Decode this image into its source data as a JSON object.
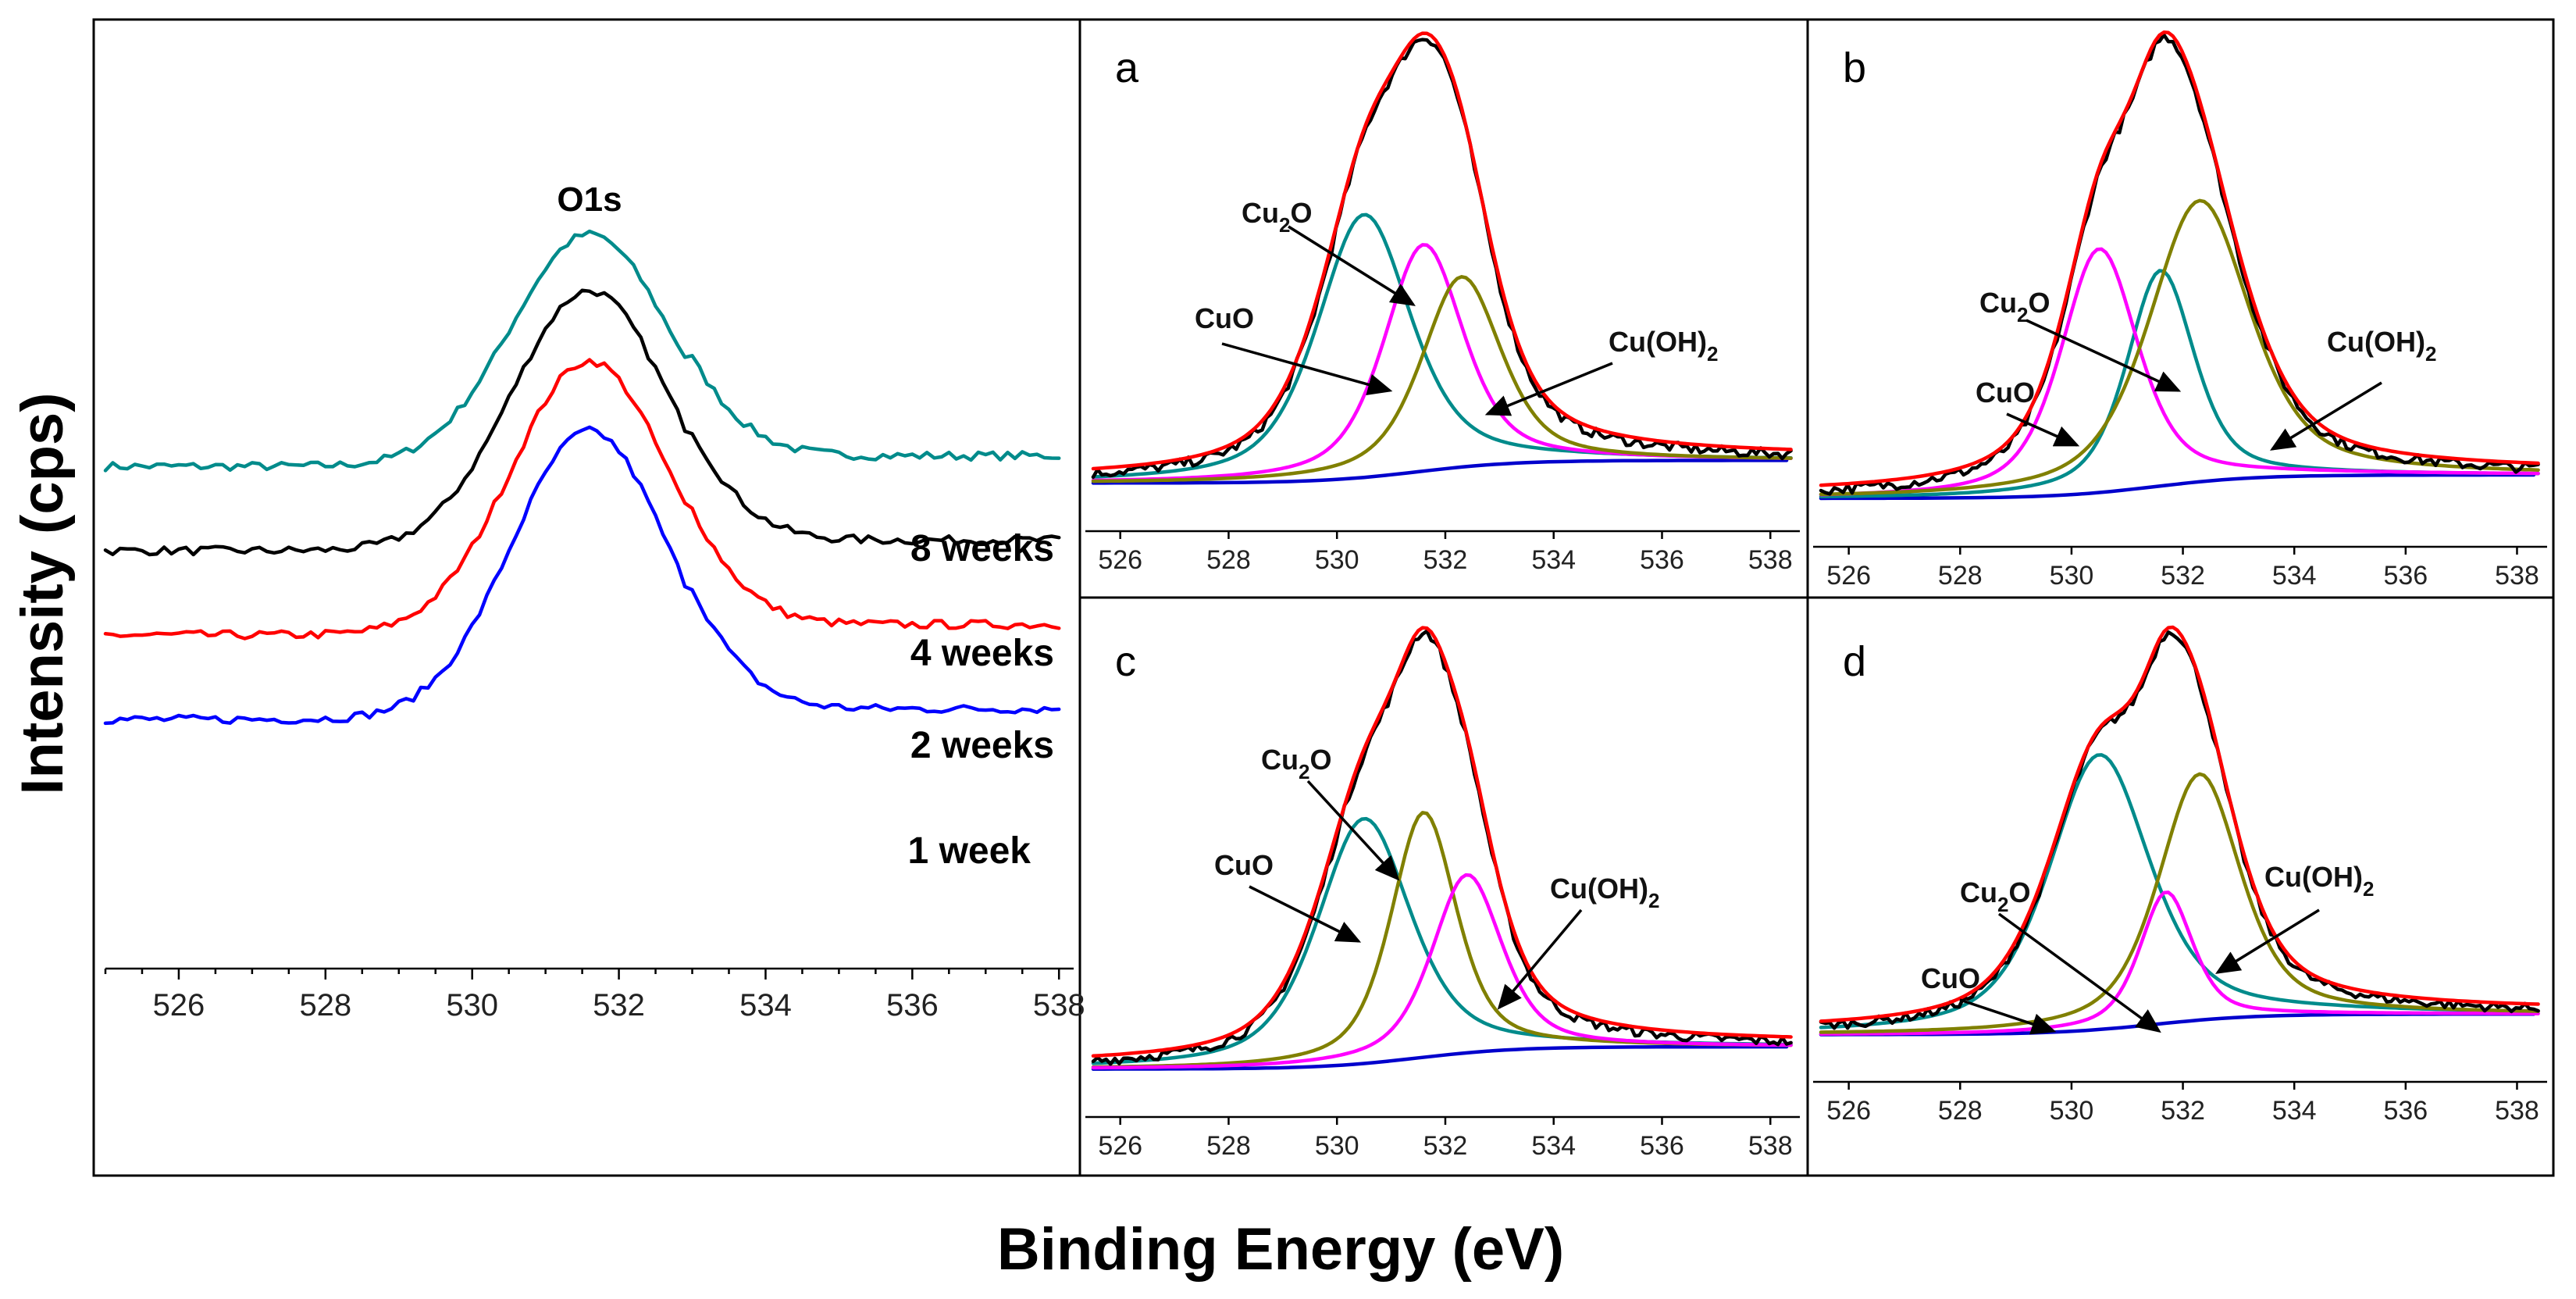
{
  "chart_data": [
    {
      "panel": "main",
      "type": "line",
      "title": "O1s",
      "xlabel": "Binding Energy (eV)",
      "ylabel": "Intensity (cps)",
      "xlim": [
        525,
        538.2
      ],
      "xticks": [
        526,
        528,
        530,
        532,
        534,
        536,
        538
      ],
      "peak_center": 531.6,
      "series": [
        {
          "name": "8 weeks",
          "color": "#008b8b",
          "baseline": 0.67,
          "peak": 1.0
        },
        {
          "name": "4 weeks",
          "color": "#000000",
          "baseline": 0.55,
          "peak": 0.92
        },
        {
          "name": "2 weeks",
          "color": "#ff0000",
          "baseline": 0.43,
          "peak": 0.82
        },
        {
          "name": "1 week",
          "color": "#0000ff",
          "baseline": 0.31,
          "peak": 0.72
        }
      ]
    },
    {
      "panel": "a",
      "type": "line",
      "xlim": [
        525.5,
        538.4
      ],
      "xticks": [
        526,
        528,
        530,
        532,
        534,
        536,
        538
      ],
      "components": [
        {
          "name": "CuO",
          "center": 530.5,
          "height": 0.58,
          "width": 1.0,
          "color": "#008b8b"
        },
        {
          "name": "Cu2O",
          "center": 531.6,
          "height": 0.5,
          "width": 0.85,
          "color": "#ff00ff"
        },
        {
          "name": "Cu(OH)2",
          "center": 532.3,
          "height": 0.42,
          "width": 0.85,
          "color": "#808000"
        }
      ],
      "envelope_peak": 1.0,
      "labels": {
        "CuO": "CuO",
        "Cu2O": "Cu",
        "Cu2O_sub": "2",
        "Cu2O_tail": "O",
        "CuOH2": "Cu(OH)",
        "CuOH2_sub": "2"
      }
    },
    {
      "panel": "b",
      "type": "line",
      "xlim": [
        525.5,
        538.4
      ],
      "xticks": [
        526,
        528,
        530,
        532,
        534,
        536,
        538
      ],
      "components": [
        {
          "name": "CuO",
          "center": 531.6,
          "height": 0.46,
          "width": 0.7,
          "color": "#008b8b"
        },
        {
          "name": "Cu2O",
          "center": 530.5,
          "height": 0.52,
          "width": 0.8,
          "color": "#ff00ff"
        },
        {
          "name": "Cu(OH)2",
          "center": 532.3,
          "height": 0.6,
          "width": 1.05,
          "color": "#808000"
        }
      ],
      "envelope_peak": 1.0,
      "labels": {
        "CuO": "CuO",
        "Cu2O": "Cu",
        "Cu2O_sub": "2",
        "Cu2O_tail": "O",
        "CuOH2": "Cu(OH)",
        "CuOH2_sub": "2"
      }
    },
    {
      "panel": "c",
      "type": "line",
      "xlim": [
        525.5,
        538.4
      ],
      "xticks": [
        526,
        528,
        530,
        532,
        534,
        536,
        538
      ],
      "components": [
        {
          "name": "CuO",
          "center": 530.5,
          "height": 0.55,
          "width": 1.0,
          "color": "#008b8b"
        },
        {
          "name": "Cu2O",
          "center": 531.6,
          "height": 0.55,
          "width": 0.7,
          "color": "#808000"
        },
        {
          "name": "Cu(OH)2",
          "center": 532.4,
          "height": 0.4,
          "width": 0.75,
          "color": "#ff00ff"
        }
      ],
      "envelope_peak": 1.0,
      "labels": {
        "CuO": "CuO",
        "Cu2O": "Cu",
        "Cu2O_sub": "2",
        "Cu2O_tail": "O",
        "CuOH2": "Cu(OH)",
        "CuOH2_sub": "2"
      }
    },
    {
      "panel": "d",
      "type": "line",
      "xlim": [
        525.5,
        538.4
      ],
      "xticks": [
        526,
        528,
        530,
        532,
        534,
        536,
        538
      ],
      "components": [
        {
          "name": "CuO",
          "center": 530.5,
          "height": 0.67,
          "width": 1.05,
          "color": "#008b8b"
        },
        {
          "name": "Cu2O",
          "center": 531.7,
          "height": 0.32,
          "width": 0.55,
          "color": "#ff00ff"
        },
        {
          "name": "Cu(OH)2",
          "center": 532.3,
          "height": 0.6,
          "width": 0.85,
          "color": "#808000"
        }
      ],
      "envelope_peak": 1.0,
      "labels": {
        "CuO": "CuO",
        "Cu2O": "Cu",
        "Cu2O_sub": "2",
        "Cu2O_tail": "O",
        "CuOH2": "Cu(OH)",
        "CuOH2_sub": "2"
      }
    }
  ],
  "figure": {
    "xlabel": "Binding Energy (eV)",
    "ylabel": "Intensity (cps)",
    "main_title": "O1s",
    "legend": [
      "8 weeks",
      "4 weeks",
      "2 weeks",
      "1 week"
    ],
    "panel_letters": [
      "a",
      "b",
      "c",
      "d"
    ]
  },
  "colors": {
    "teal": "#008b8b",
    "black": "#000000",
    "red": "#ff0000",
    "blue": "#0000ff",
    "magenta": "#ff00ff",
    "olive": "#808000"
  }
}
